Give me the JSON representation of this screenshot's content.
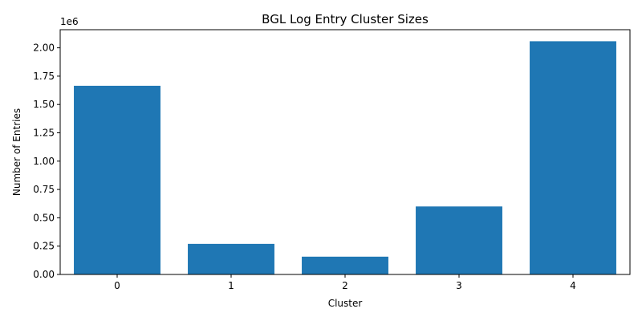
{
  "chart_data": {
    "type": "bar",
    "title": "BGL Log Entry Cluster Sizes",
    "xlabel": "Cluster",
    "ylabel": "Number of Entries",
    "y_offset_text": "1e6",
    "categories": [
      "0",
      "1",
      "2",
      "3",
      "4"
    ],
    "values": [
      1665000,
      270000,
      157000,
      600000,
      2058000
    ],
    "ylim": [
      0,
      2160000
    ],
    "y_ticks": [
      0,
      250000,
      500000,
      750000,
      1000000,
      1250000,
      1500000,
      1750000,
      2000000
    ],
    "y_tick_labels": [
      "0.00",
      "0.25",
      "0.50",
      "0.75",
      "1.00",
      "1.25",
      "1.50",
      "1.75",
      "2.00"
    ],
    "bar_color": "#1f77b4",
    "grid": false,
    "legend": "none"
  }
}
